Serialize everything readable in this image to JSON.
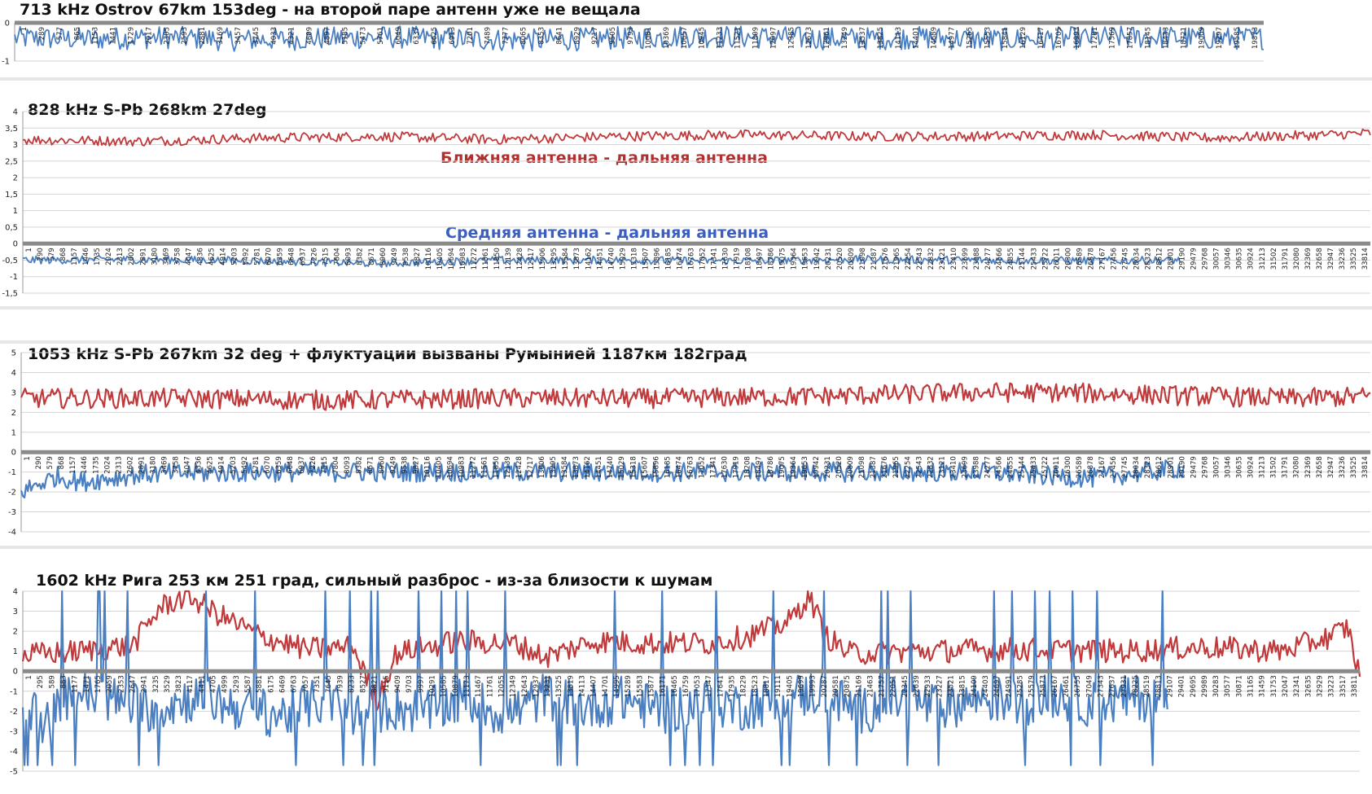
{
  "chart_data": [
    {
      "type": "line",
      "title": "713 kHz  Ostrov 67km 153deg  - на второй паре антенн уже не вещала",
      "ylim": [
        -1,
        0
      ],
      "yticks": [
        "0",
        "-1"
      ],
      "grid": true,
      "x_tick_labels": [
        "1",
        "289",
        "577",
        "865",
        "1153",
        "1441",
        "1729",
        "2017",
        "2305",
        "2593",
        "2881",
        "3169",
        "3457",
        "3745",
        "4033",
        "4321",
        "4609",
        "4897",
        "5185",
        "5473",
        "5761",
        "6049",
        "6337",
        "6625",
        "6913",
        "7201",
        "7489",
        "7777",
        "8065",
        "8353",
        "8641",
        "8929",
        "9217",
        "9505",
        "9793",
        "10081",
        "10369",
        "10657",
        "10945",
        "11233",
        "11521",
        "11809",
        "12097",
        "12385",
        "12673",
        "12961",
        "13249",
        "13537",
        "13825",
        "14113",
        "14401",
        "14689",
        "14977",
        "15265",
        "15553",
        "15841",
        "16129",
        "16417",
        "16705",
        "16993",
        "17281",
        "17569",
        "17857",
        "18145",
        "18433",
        "18721",
        "19009",
        "19297",
        "19585",
        "19873"
      ],
      "series": [
        {
          "color": "#4a7fc1",
          "center": -0.4,
          "amplitude": 0.3,
          "points": [
            [
              1,
              -0.4
            ],
            [
              1200,
              -0.42
            ],
            [
              2400,
              -0.38
            ],
            [
              3600,
              -0.45
            ],
            [
              4800,
              -0.41
            ],
            [
              6000,
              -0.37
            ],
            [
              7200,
              -0.43
            ],
            [
              8400,
              -0.46
            ],
            [
              9600,
              -0.4
            ],
            [
              10800,
              -0.35
            ],
            [
              12000,
              -0.38
            ],
            [
              13200,
              -0.42
            ],
            [
              14400,
              -0.39
            ],
            [
              15600,
              -0.44
            ],
            [
              16800,
              -0.4
            ],
            [
              18000,
              -0.37
            ],
            [
              19200,
              -0.41
            ],
            [
              19900,
              -0.4
            ]
          ]
        }
      ]
    },
    {
      "type": "line",
      "title": "828 kHz   S-Pb 268km 27deg",
      "ylim": [
        -1.5,
        4
      ],
      "yticks": [
        "4",
        "3,5",
        "3",
        "2,5",
        "2",
        "1,5",
        "1",
        "0,5",
        "0",
        "-0,5",
        "-1",
        "-1,5"
      ],
      "grid": true,
      "annotations": [
        "Ближняя антенна - дальняя антенна",
        "Средняя антенна - дальняя антенна"
      ],
      "x_tick_labels": [
        "1",
        "290",
        "579",
        "868",
        "1157",
        "1446",
        "1735",
        "2024",
        "2313",
        "2602",
        "2891",
        "3180",
        "3469",
        "3758",
        "4047",
        "4336",
        "4625",
        "4914",
        "5203",
        "5492",
        "5781",
        "6070",
        "6359",
        "6648",
        "6937",
        "7226",
        "7515",
        "7804",
        "8093",
        "8382",
        "8671",
        "8960",
        "9249",
        "9538",
        "9827",
        "10116",
        "10405",
        "10694",
        "10983",
        "11272",
        "11561",
        "11850",
        "12139",
        "12428",
        "12717",
        "13006",
        "13295",
        "13584",
        "13873",
        "14162",
        "14451",
        "14740",
        "15029",
        "15318",
        "15607",
        "15896",
        "16185",
        "16474",
        "16763",
        "17052",
        "17341",
        "17630",
        "17919",
        "18208",
        "18497",
        "18786",
        "19075",
        "19364",
        "19653",
        "19942",
        "20231",
        "20520",
        "20809",
        "21098",
        "21387",
        "21676",
        "21965",
        "22254",
        "22543",
        "22832",
        "23121",
        "23410",
        "23699",
        "23988",
        "24277",
        "24566",
        "24855",
        "25144",
        "25433",
        "25722",
        "26011",
        "26300",
        "26589",
        "26878",
        "27167",
        "27456",
        "27745",
        "28034",
        "28323",
        "28612",
        "28901",
        "29190",
        "29479",
        "29768",
        "30057",
        "30346",
        "30635",
        "30924",
        "31213",
        "31502",
        "31791",
        "32080",
        "32369",
        "32658",
        "32947",
        "33236",
        "33525",
        "33814"
      ],
      "series": [
        {
          "color": "#c0393b",
          "center": 3.2,
          "amplitude": 0.15,
          "points": [
            [
              1,
              3.15
            ],
            [
              3000,
              3.1
            ],
            [
              6000,
              3.2
            ],
            [
              9000,
              3.25
            ],
            [
              12000,
              3.15
            ],
            [
              15000,
              3.25
            ],
            [
              18000,
              3.3
            ],
            [
              21000,
              3.25
            ],
            [
              24000,
              3.25
            ],
            [
              27000,
              3.3
            ],
            [
              30000,
              3.2
            ],
            [
              33000,
              3.3
            ],
            [
              34000,
              3.35
            ]
          ]
        },
        {
          "color": "#4a7fc1",
          "center": -0.5,
          "amplitude": 0.12,
          "points": [
            [
              1,
              -0.5
            ],
            [
              3000,
              -0.48
            ],
            [
              6000,
              -0.52
            ],
            [
              9000,
              -0.6
            ],
            [
              12000,
              -0.5
            ],
            [
              15000,
              -0.5
            ],
            [
              18000,
              -0.52
            ],
            [
              21000,
              -0.48
            ],
            [
              24000,
              -0.5
            ],
            [
              27000,
              -0.52
            ],
            [
              29200,
              -0.5
            ]
          ]
        }
      ]
    },
    {
      "type": "line",
      "title": "1053 kHz    S-Pb 267km 32 deg + флуктуации вызваны Румынией 1187км 182град",
      "ylim": [
        -4,
        5
      ],
      "yticks": [
        "5",
        "4",
        "3",
        "2",
        "1",
        "0",
        "-1",
        "-2",
        "-3",
        "-4"
      ],
      "grid": true,
      "x_tick_labels": [
        "1",
        "290",
        "579",
        "868",
        "1157",
        "1446",
        "1735",
        "2024",
        "2313",
        "2602",
        "2891",
        "3180",
        "3469",
        "3758",
        "4047",
        "4336",
        "4625",
        "4914",
        "5203",
        "5492",
        "5781",
        "6070",
        "6359",
        "6648",
        "6937",
        "7226",
        "7515",
        "7804",
        "8093",
        "8382",
        "8671",
        "8960",
        "9249",
        "9538",
        "9827",
        "10116",
        "10405",
        "10694",
        "10983",
        "11272",
        "11561",
        "11850",
        "12139",
        "12428",
        "12717",
        "13006",
        "13295",
        "13584",
        "13873",
        "14162",
        "14451",
        "14740",
        "15029",
        "15318",
        "15607",
        "15896",
        "16185",
        "16474",
        "16763",
        "17052",
        "17341",
        "17630",
        "17919",
        "18208",
        "18497",
        "18786",
        "19075",
        "19364",
        "19653",
        "19942",
        "20231",
        "20520",
        "20809",
        "21098",
        "21387",
        "21676",
        "21965",
        "22254",
        "22543",
        "22832",
        "23121",
        "23410",
        "23699",
        "23988",
        "24277",
        "24566",
        "24855",
        "25144",
        "25433",
        "25722",
        "26011",
        "26300",
        "26589",
        "26878",
        "27167",
        "27456",
        "27745",
        "28034",
        "28323",
        "28612",
        "28901",
        "29190",
        "29479",
        "29768",
        "30057",
        "30346",
        "30635",
        "30924",
        "31213",
        "31502",
        "31791",
        "32080",
        "32369",
        "32658",
        "32947",
        "33236",
        "33525",
        "33814"
      ],
      "series": [
        {
          "color": "#c0393b",
          "center": 2.7,
          "amplitude": 0.5,
          "points": [
            [
              1,
              2.7
            ],
            [
              4000,
              2.7
            ],
            [
              8000,
              2.6
            ],
            [
              12000,
              2.7
            ],
            [
              16000,
              2.7
            ],
            [
              20000,
              2.8
            ],
            [
              22000,
              2.9
            ],
            [
              24000,
              3.0
            ],
            [
              26000,
              3.0
            ],
            [
              28000,
              2.9
            ],
            [
              30000,
              2.8
            ],
            [
              32000,
              2.7
            ],
            [
              34000,
              2.8
            ]
          ]
        },
        {
          "color": "#4a7fc1",
          "center": -1.0,
          "amplitude": 0.5,
          "points": [
            [
              1,
              -2.0
            ],
            [
              900,
              -1.2
            ],
            [
              1500,
              -1.5
            ],
            [
              3000,
              -1.1
            ],
            [
              6000,
              -1.0
            ],
            [
              12000,
              -1.0
            ],
            [
              18000,
              -1.0
            ],
            [
              24000,
              -1.0
            ],
            [
              27000,
              -1.3
            ],
            [
              29300,
              -0.8
            ]
          ]
        }
      ]
    },
    {
      "type": "line",
      "title": "1602 kHz    Рига 253 км 251 град, сильный разброс - из-за близости к шумам",
      "ylim": [
        -5,
        4
      ],
      "yticks": [
        "4",
        "3",
        "2",
        "1",
        "0",
        "-1",
        "-2",
        "-3",
        "-4",
        "-5"
      ],
      "grid": true,
      "x_tick_labels": [
        "1",
        "295",
        "589",
        "883",
        "1177",
        "1471",
        "1765",
        "2059",
        "2353",
        "2647",
        "2941",
        "3235",
        "3529",
        "3823",
        "4117",
        "4411",
        "4705",
        "4999",
        "5293",
        "5587",
        "5881",
        "6175",
        "6469",
        "6763",
        "7057",
        "7351",
        "7645",
        "7939",
        "8233",
        "8527",
        "8821",
        "9115",
        "9409",
        "9703",
        "9997",
        "10291",
        "10585",
        "10879",
        "11173",
        "11467",
        "11761",
        "12055",
        "12349",
        "12643",
        "12937",
        "13231",
        "13525",
        "13819",
        "14113",
        "14407",
        "14701",
        "14995",
        "15289",
        "15583",
        "15877",
        "16171",
        "16465",
        "16759",
        "17053",
        "17347",
        "17641",
        "17935",
        "18229",
        "18523",
        "18817",
        "19111",
        "19405",
        "19699",
        "19993",
        "20287",
        "20581",
        "20875",
        "21169",
        "21463",
        "21757",
        "22051",
        "22345",
        "22639",
        "22933",
        "23227",
        "23521",
        "23815",
        "24109",
        "24403",
        "24697",
        "24991",
        "25285",
        "25579",
        "25873",
        "26167",
        "26461",
        "26755",
        "27049",
        "27343",
        "27637",
        "27931",
        "28225",
        "28519",
        "28813",
        "29107",
        "29401",
        "29695",
        "29989",
        "30283",
        "30577",
        "30871",
        "31165",
        "31459",
        "31753",
        "32047",
        "32341",
        "32635",
        "32929",
        "33223",
        "33517",
        "33811"
      ],
      "series": [
        {
          "color": "#c0393b",
          "center": 1.0,
          "amplitude": 0.6,
          "points": [
            [
              1,
              0.8
            ],
            [
              1500,
              1.0
            ],
            [
              2800,
              1.3
            ],
            [
              3500,
              3.2
            ],
            [
              4200,
              3.8
            ],
            [
              5000,
              2.8
            ],
            [
              6000,
              1.8
            ],
            [
              7200,
              1.1
            ],
            [
              8400,
              1.2
            ],
            [
              9000,
              -1.5
            ],
            [
              9500,
              0.9
            ],
            [
              11000,
              1.5
            ],
            [
              12500,
              1.4
            ],
            [
              13300,
              0.7
            ],
            [
              14500,
              1.5
            ],
            [
              16000,
              1.4
            ],
            [
              17500,
              1.4
            ],
            [
              18500,
              1.8
            ],
            [
              19500,
              2.5
            ],
            [
              20000,
              3.8
            ],
            [
              20400,
              1.8
            ],
            [
              21000,
              0.9
            ],
            [
              23000,
              1.0
            ],
            [
              25000,
              1.1
            ],
            [
              28000,
              1.0
            ],
            [
              30000,
              1.2
            ],
            [
              32000,
              1.0
            ],
            [
              33200,
              1.7
            ],
            [
              33700,
              2.2
            ],
            [
              34000,
              -0.3
            ]
          ]
        },
        {
          "color": "#4a7fc1",
          "center": -1.5,
          "amplitude": 1.2,
          "points": [
            [
              1,
              -1.2
            ],
            [
              600,
              -2.8
            ],
            [
              1200,
              -1.0
            ],
            [
              2200,
              -1.4
            ],
            [
              3300,
              -1.9
            ],
            [
              4400,
              -1.3
            ],
            [
              5500,
              -1.8
            ],
            [
              6600,
              -2.2
            ],
            [
              7700,
              -1.4
            ],
            [
              8600,
              -2.3
            ],
            [
              9300,
              -1.8
            ],
            [
              10300,
              -2.0
            ],
            [
              11300,
              -1.4
            ],
            [
              12300,
              -2.2
            ],
            [
              13300,
              -1.2
            ],
            [
              14300,
              -1.8
            ],
            [
              15300,
              -1.4
            ],
            [
              16300,
              -2.0
            ],
            [
              17300,
              -1.5
            ],
            [
              18300,
              -1.8
            ],
            [
              19300,
              -1.4
            ],
            [
              20300,
              -1.0
            ],
            [
              21300,
              -2.0
            ],
            [
              22300,
              -1.4
            ],
            [
              23300,
              -1.8
            ],
            [
              24300,
              -1.3
            ],
            [
              25300,
              -1.6
            ],
            [
              26300,
              -1.2
            ],
            [
              27300,
              -1.7
            ],
            [
              28300,
              -1.3
            ],
            [
              29107,
              -1.4
            ]
          ]
        }
      ]
    }
  ]
}
